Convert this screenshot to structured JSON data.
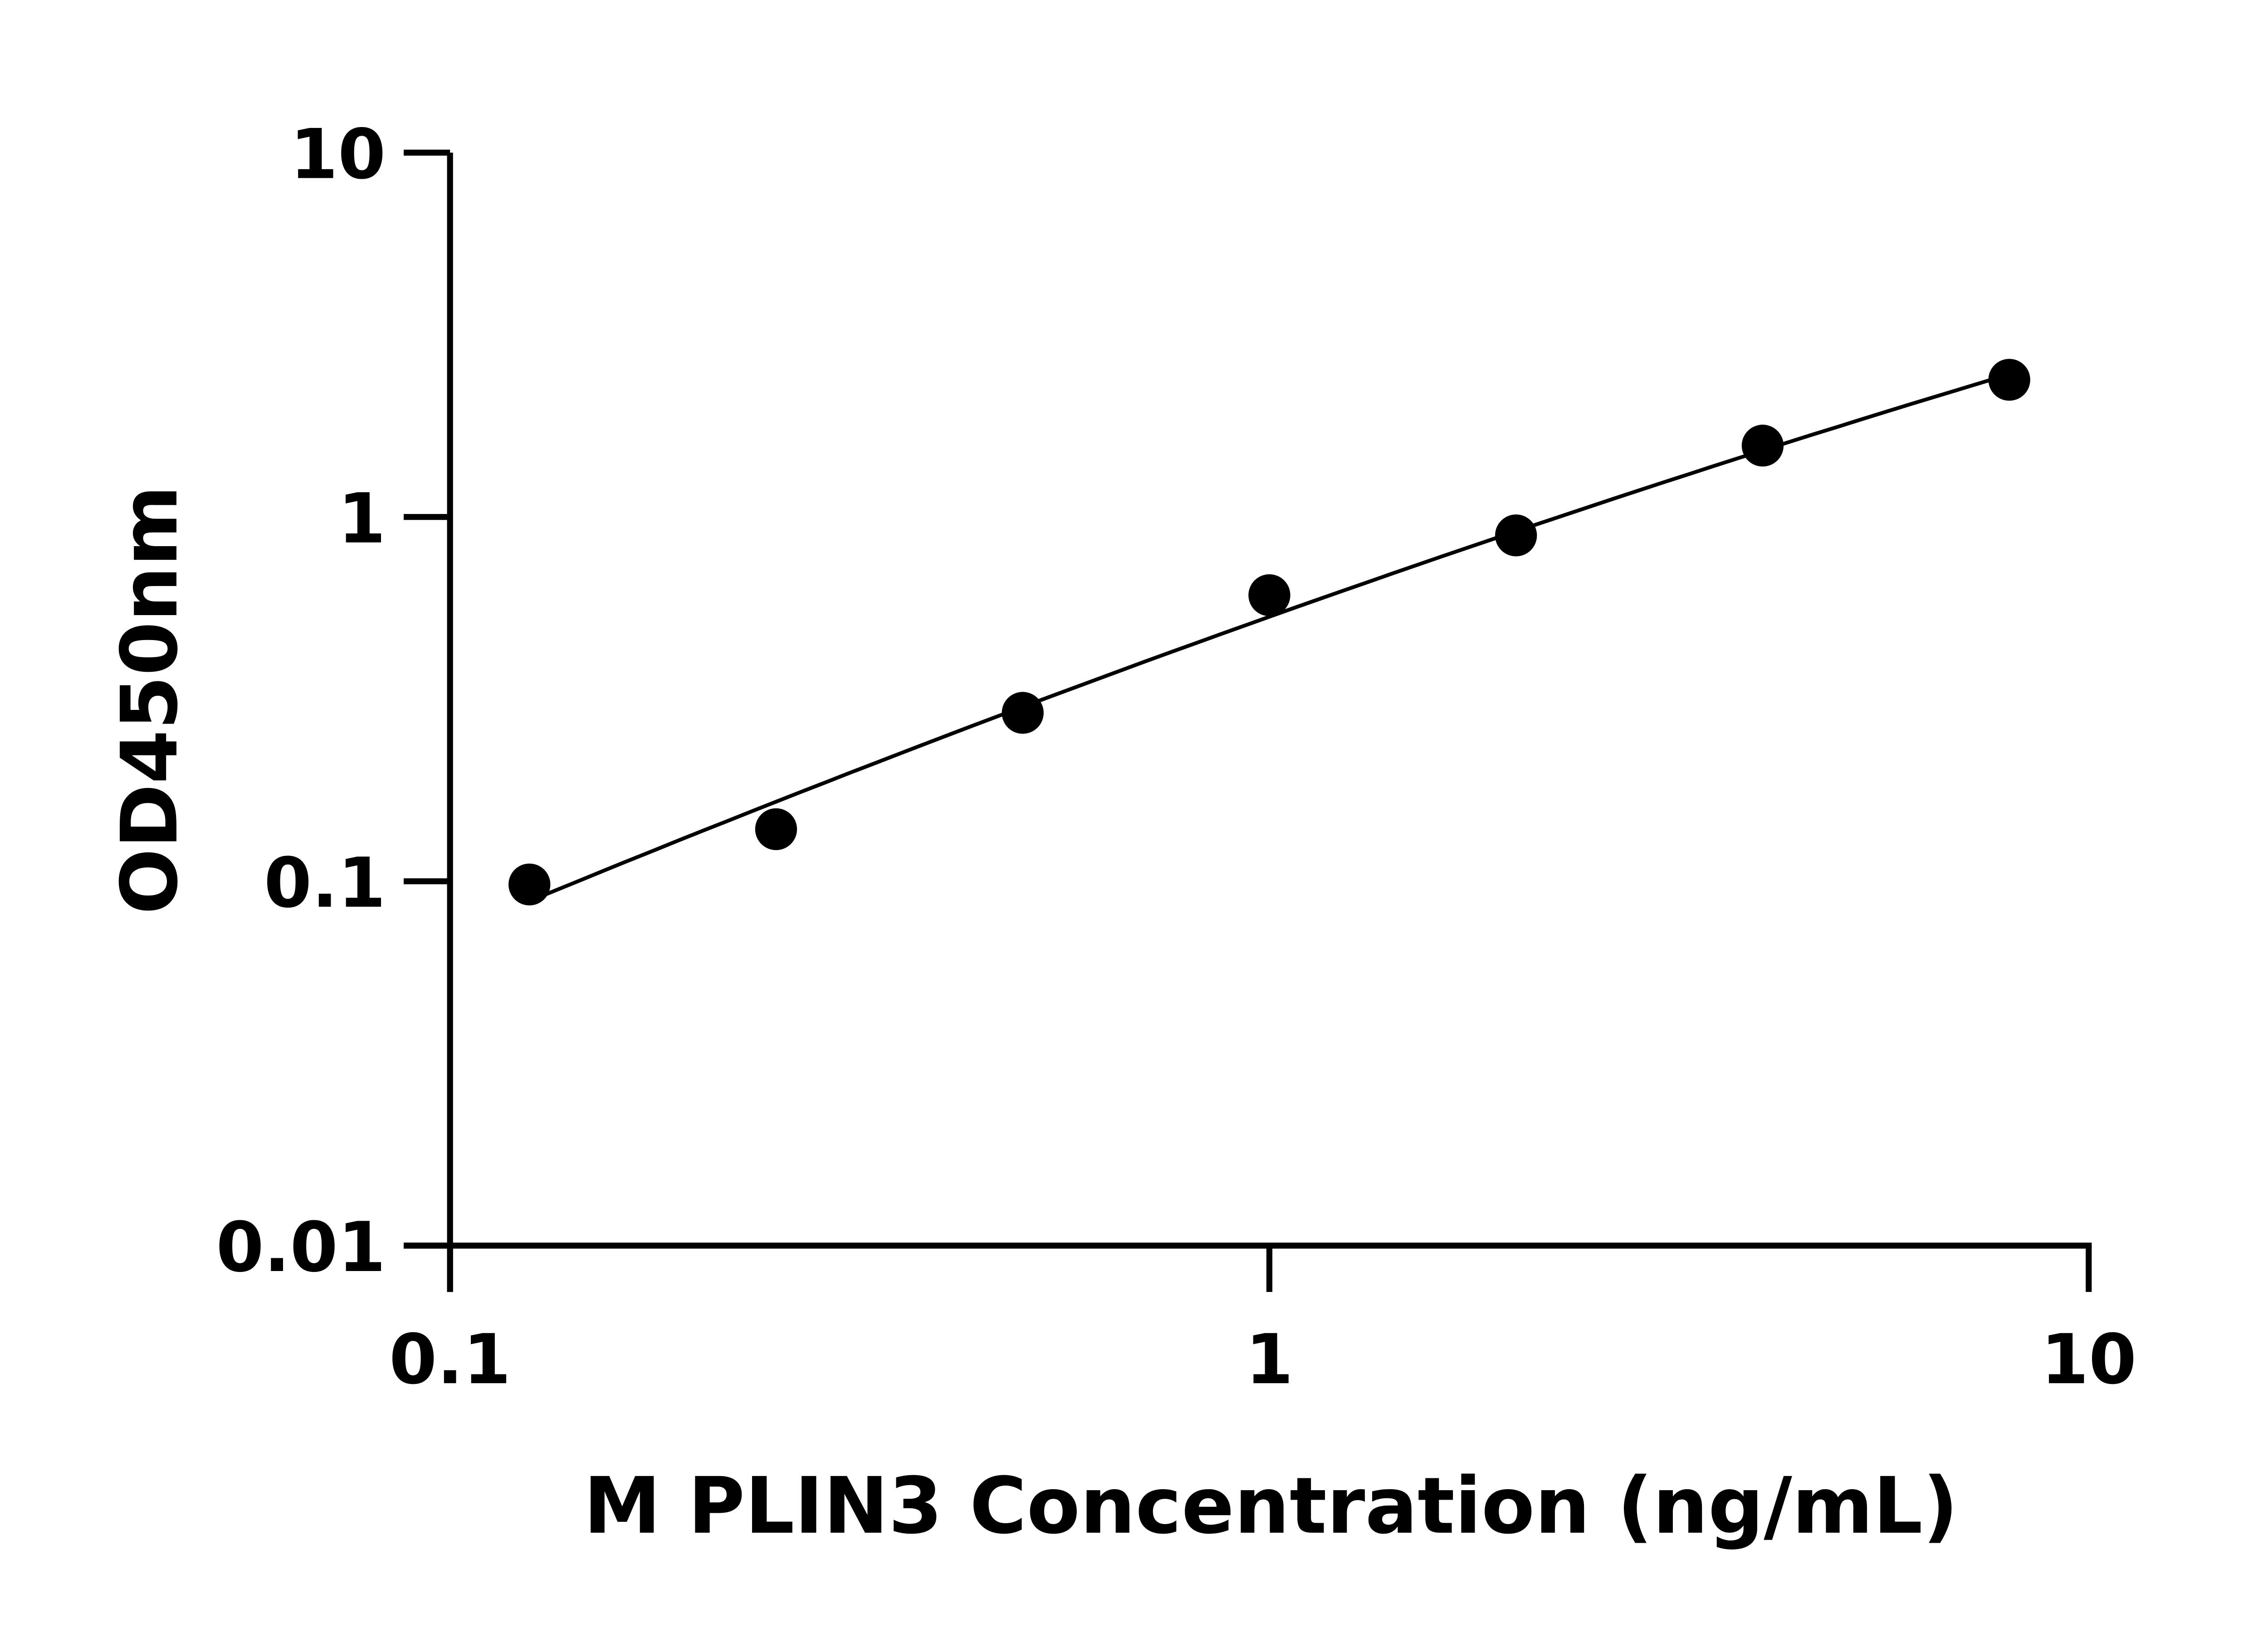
{
  "chart_data": {
    "type": "scatter",
    "title": "",
    "xlabel": "M PLIN3 Concentration (ng/mL)",
    "ylabel": "OD450nm",
    "x_scale": "log",
    "y_scale": "log",
    "xlim": [
      0.1,
      10
    ],
    "ylim": [
      0.01,
      10
    ],
    "x_ticks": [
      "0.1",
      "1",
      "10"
    ],
    "y_ticks": [
      "0.01",
      "0.1",
      "1",
      "10"
    ],
    "grid": false,
    "legend": "none",
    "series": [
      {
        "x": [
          0.125,
          0.25,
          0.5,
          1,
          2,
          4,
          8
        ],
        "y": [
          0.098,
          0.139,
          0.29,
          0.61,
          0.89,
          1.57,
          2.38
        ],
        "marker": "filled-circle",
        "fit_line": true,
        "color": "#000000"
      }
    ]
  }
}
